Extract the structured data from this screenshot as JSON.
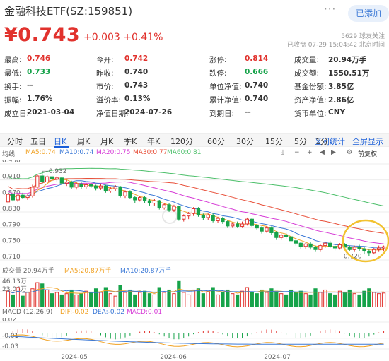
{
  "header": {
    "stock_name": "金融科技ETF(SZ:159851)",
    "more_label": "···",
    "follow_label": "已添加",
    "price": "¥0.743",
    "change": "+0.003 +0.41%",
    "watchers": "5629 球友关注",
    "status": "已收盘 07-29 15:04:42 北京时间"
  },
  "quotes": [
    [
      {
        "label": "最高:",
        "value": "0.746",
        "color": "red"
      },
      {
        "label": "今开:",
        "value": "0.742",
        "color": "red"
      },
      {
        "label": "涨停:",
        "value": "0.814",
        "color": "red"
      },
      {
        "label": "成交量:",
        "value": "20.94万手",
        "color": "dark"
      }
    ],
    [
      {
        "label": "最低:",
        "value": "0.733",
        "color": "green"
      },
      {
        "label": "昨收:",
        "value": "0.740",
        "color": "dark"
      },
      {
        "label": "跌停:",
        "value": "0.666",
        "color": "green"
      },
      {
        "label": "成交额:",
        "value": "1550.51万",
        "color": "dark"
      }
    ],
    [
      {
        "label": "换手:",
        "value": "--",
        "color": "dark"
      },
      {
        "label": "市价:",
        "value": "0.743",
        "color": "dark"
      },
      {
        "label": "单位净值:",
        "value": "0.740",
        "color": "dark"
      },
      {
        "label": "基金份额:",
        "value": "3.85亿",
        "color": "dark"
      }
    ],
    [
      {
        "label": "振幅:",
        "value": "1.76%",
        "color": "dark"
      },
      {
        "label": "溢价率:",
        "value": "0.13%",
        "color": "dark"
      },
      {
        "label": "累计净值:",
        "value": "0.740",
        "color": "dark"
      },
      {
        "label": "资产净值:",
        "value": "2.86亿",
        "color": "dark"
      }
    ],
    [
      {
        "label": "成立日:",
        "value": "2021-03-04",
        "color": "dark"
      },
      {
        "label": "净值日期:",
        "value": "2024-07-26",
        "color": "dark"
      },
      {
        "label": "到期日:",
        "value": "--",
        "color": "dark"
      },
      {
        "label": "货币单位:",
        "value": "CNY",
        "color": "dark"
      }
    ]
  ],
  "periods": [
    "分时",
    "五日",
    "日K",
    "周K",
    "月K",
    "季K",
    "年K",
    "120分",
    "60分",
    "30分",
    "15分",
    "5分",
    "1分"
  ],
  "active_period": "日K",
  "links": {
    "intervals": "区间统计",
    "fullscreen": "全屏显示"
  },
  "ma_legend": {
    "label": "均线",
    "items": [
      {
        "text": "MA5:0.74",
        "color": "#f0a020"
      },
      {
        "text": "MA10:0.74",
        "color": "#3a78d6"
      },
      {
        "text": "MA20:0.75",
        "color": "#d63ad6"
      },
      {
        "text": "MA30:0.77",
        "color": "#e8503a"
      },
      {
        "text": "MA60:0.81",
        "color": "#4cbf6a"
      }
    ],
    "adjust": "前复权"
  },
  "chart_data": {
    "type": "candlestick",
    "y_ticks": [
      "0.950",
      "0.910",
      "0.870",
      "0.830",
      "0.790",
      "0.750",
      "0.710"
    ],
    "ylim": [
      0.71,
      0.95
    ],
    "x_ticks": [
      "2024-05",
      "2024-06",
      "2024-07"
    ],
    "annotations": {
      "high": "0.932",
      "low": "0.720"
    },
    "candles": [
      [
        0.855,
        0.874,
        0.85,
        0.877
      ],
      [
        0.874,
        0.86,
        0.856,
        0.88
      ],
      [
        0.86,
        0.872,
        0.855,
        0.876
      ],
      [
        0.872,
        0.866,
        0.862,
        0.878
      ],
      [
        0.866,
        0.87,
        0.86,
        0.875
      ],
      [
        0.87,
        0.892,
        0.866,
        0.898
      ],
      [
        0.892,
        0.92,
        0.888,
        0.925
      ],
      [
        0.92,
        0.905,
        0.9,
        0.932
      ],
      [
        0.905,
        0.918,
        0.9,
        0.922
      ],
      [
        0.918,
        0.912,
        0.906,
        0.922
      ],
      [
        0.912,
        0.915,
        0.906,
        0.92
      ],
      [
        0.915,
        0.902,
        0.898,
        0.918
      ],
      [
        0.902,
        0.905,
        0.895,
        0.91
      ],
      [
        0.905,
        0.892,
        0.888,
        0.908
      ],
      [
        0.892,
        0.9,
        0.886,
        0.905
      ],
      [
        0.9,
        0.893,
        0.888,
        0.904
      ],
      [
        0.893,
        0.898,
        0.888,
        0.902
      ],
      [
        0.898,
        0.895,
        0.89,
        0.902
      ],
      [
        0.895,
        0.89,
        0.884,
        0.898
      ],
      [
        0.89,
        0.895,
        0.885,
        0.9
      ],
      [
        0.895,
        0.882,
        0.878,
        0.898
      ],
      [
        0.882,
        0.888,
        0.878,
        0.892
      ],
      [
        0.888,
        0.893,
        0.882,
        0.897
      ],
      [
        0.893,
        0.87,
        0.866,
        0.895
      ],
      [
        0.87,
        0.88,
        0.865,
        0.884
      ],
      [
        0.88,
        0.866,
        0.862,
        0.884
      ],
      [
        0.866,
        0.86,
        0.852,
        0.87
      ],
      [
        0.86,
        0.866,
        0.856,
        0.87
      ],
      [
        0.866,
        0.858,
        0.852,
        0.87
      ],
      [
        0.858,
        0.852,
        0.846,
        0.862
      ],
      [
        0.852,
        0.858,
        0.846,
        0.862
      ],
      [
        0.858,
        0.84,
        0.836,
        0.86
      ],
      [
        0.84,
        0.848,
        0.836,
        0.852
      ],
      [
        0.848,
        0.835,
        0.83,
        0.852
      ],
      [
        0.835,
        0.844,
        0.83,
        0.848
      ],
      [
        0.844,
        0.812,
        0.808,
        0.846
      ],
      [
        0.812,
        0.82,
        0.806,
        0.824
      ],
      [
        0.82,
        0.826,
        0.812,
        0.83
      ],
      [
        0.826,
        0.838,
        0.82,
        0.842
      ],
      [
        0.838,
        0.822,
        0.818,
        0.842
      ],
      [
        0.822,
        0.816,
        0.81,
        0.826
      ],
      [
        0.816,
        0.822,
        0.81,
        0.826
      ],
      [
        0.822,
        0.808,
        0.804,
        0.826
      ],
      [
        0.808,
        0.814,
        0.802,
        0.818
      ],
      [
        0.814,
        0.806,
        0.8,
        0.818
      ],
      [
        0.806,
        0.795,
        0.79,
        0.81
      ],
      [
        0.795,
        0.8,
        0.79,
        0.804
      ],
      [
        0.8,
        0.794,
        0.79,
        0.806
      ],
      [
        0.794,
        0.8,
        0.79,
        0.806
      ],
      [
        0.8,
        0.812,
        0.796,
        0.816
      ],
      [
        0.812,
        0.796,
        0.792,
        0.816
      ],
      [
        0.796,
        0.79,
        0.786,
        0.8
      ],
      [
        0.79,
        0.782,
        0.776,
        0.794
      ],
      [
        0.782,
        0.79,
        0.778,
        0.794
      ],
      [
        0.79,
        0.778,
        0.772,
        0.794
      ],
      [
        0.778,
        0.766,
        0.76,
        0.782
      ],
      [
        0.766,
        0.772,
        0.76,
        0.776
      ],
      [
        0.772,
        0.768,
        0.762,
        0.778
      ],
      [
        0.768,
        0.758,
        0.752,
        0.772
      ],
      [
        0.758,
        0.752,
        0.746,
        0.762
      ],
      [
        0.752,
        0.744,
        0.738,
        0.756
      ],
      [
        0.744,
        0.75,
        0.738,
        0.754
      ],
      [
        0.75,
        0.742,
        0.736,
        0.754
      ],
      [
        0.742,
        0.736,
        0.73,
        0.746
      ],
      [
        0.736,
        0.746,
        0.73,
        0.75
      ],
      [
        0.746,
        0.752,
        0.74,
        0.756
      ],
      [
        0.752,
        0.744,
        0.74,
        0.758
      ],
      [
        0.744,
        0.74,
        0.734,
        0.748
      ],
      [
        0.74,
        0.748,
        0.736,
        0.752
      ],
      [
        0.748,
        0.742,
        0.738,
        0.752
      ],
      [
        0.742,
        0.736,
        0.732,
        0.746
      ],
      [
        0.736,
        0.742,
        0.73,
        0.746
      ],
      [
        0.742,
        0.738,
        0.732,
        0.748
      ],
      [
        0.738,
        0.732,
        0.724,
        0.742
      ],
      [
        0.732,
        0.728,
        0.72,
        0.736
      ],
      [
        0.728,
        0.736,
        0.724,
        0.74
      ],
      [
        0.736,
        0.74,
        0.73,
        0.746
      ],
      [
        0.74,
        0.743,
        0.733,
        0.746
      ]
    ],
    "volume": {
      "label": "成交量 20.94万手",
      "ma5": "MA5:20.87万手",
      "ma10": "MA10:20.87万手",
      "y_ticks": [
        "46.13万",
        "23.06万"
      ],
      "values": [
        24,
        18,
        30,
        16,
        22,
        28,
        38,
        36,
        26,
        20,
        22,
        18,
        20,
        26,
        18,
        20,
        24,
        22,
        28,
        22,
        30,
        20,
        16,
        34,
        22,
        26,
        18,
        22,
        24,
        20,
        18,
        30,
        22,
        26,
        20,
        40,
        22,
        18,
        26,
        28,
        20,
        24,
        30,
        18,
        22,
        26,
        20,
        18,
        24,
        30,
        22,
        20,
        26,
        22,
        28,
        24,
        20,
        18,
        26,
        22,
        24,
        20,
        18,
        28,
        22,
        26,
        20,
        18,
        24,
        22,
        26,
        20,
        18,
        24,
        28,
        22,
        20,
        21
      ]
    },
    "macd": {
      "label": "MACD (12,26,9)",
      "dif": "DIF:-0.02",
      "dea": "DEA:-0.02",
      "macd": "MACD:0.01",
      "y_ticks": [
        "0.02",
        "-0.01",
        "-0.03"
      ]
    }
  }
}
